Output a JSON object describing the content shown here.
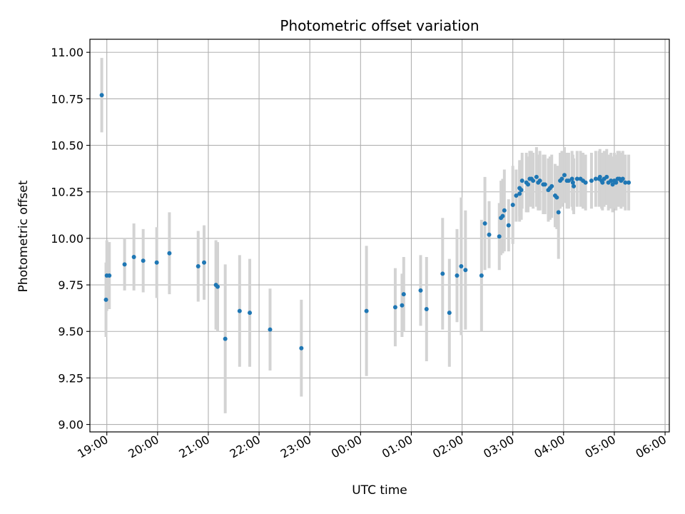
{
  "chart_data": {
    "type": "scatter",
    "title": "Photometric offset variation",
    "xlabel": "UTC time",
    "ylabel": "Photometric offset",
    "grid": true,
    "x_axis_kind": "time",
    "xlim": [
      "18:40",
      "06:05"
    ],
    "ylim": [
      8.96,
      11.07
    ],
    "x_ticks": [
      "19:00",
      "20:00",
      "21:00",
      "22:00",
      "23:00",
      "00:00",
      "01:00",
      "02:00",
      "03:00",
      "04:00",
      "05:00",
      "06:00"
    ],
    "y_ticks": [
      "9.00",
      "9.25",
      "9.50",
      "9.75",
      "10.00",
      "10.25",
      "10.50",
      "10.75",
      "11.00"
    ],
    "colors": {
      "points": "#1f77b4",
      "errorbars": "#d3d3d3",
      "grid": "#b0b0b0"
    },
    "series": [
      {
        "x": [
          "18:54",
          "18:59",
          "19:00",
          "19:03",
          "19:21",
          "19:32",
          "19:43",
          "19:59",
          "20:14",
          "20:48",
          "20:55",
          "21:09",
          "21:11",
          "21:20",
          "21:37",
          "21:49",
          "22:13",
          "22:50",
          "00:07",
          "00:41",
          "00:49",
          "00:51",
          "01:11",
          "01:18",
          "01:37",
          "01:45",
          "01:54",
          "01:59",
          "02:04",
          "02:23",
          "02:27",
          "02:32",
          "02:44",
          "02:46",
          "02:48",
          "02:50",
          "02:55",
          "03:00",
          "03:04",
          "03:08",
          "03:08",
          "03:10",
          "03:11",
          "03:16",
          "03:18",
          "03:20",
          "03:22",
          "03:24",
          "03:28",
          "03:30",
          "03:32",
          "03:36",
          "03:38",
          "03:42",
          "03:44",
          "03:46",
          "03:50",
          "03:52",
          "03:54",
          "03:56",
          "03:58",
          "04:01",
          "04:04",
          "04:06",
          "04:10",
          "04:11",
          "04:12",
          "04:16",
          "04:20",
          "04:23",
          "04:26",
          "04:33",
          "04:38",
          "04:42",
          "04:43",
          "04:45",
          "04:46",
          "04:48",
          "04:51",
          "04:53",
          "04:56",
          "04:58",
          "05:00",
          "05:02",
          "05:04",
          "05:06",
          "05:08",
          "05:10",
          "05:13",
          "05:17"
        ],
        "y": [
          10.77,
          9.67,
          9.8,
          9.8,
          9.86,
          9.9,
          9.88,
          9.87,
          9.92,
          9.85,
          9.87,
          9.75,
          9.74,
          9.46,
          9.61,
          9.6,
          9.51,
          9.41,
          9.61,
          9.63,
          9.64,
          9.7,
          9.72,
          9.62,
          9.81,
          9.6,
          9.8,
          9.85,
          9.83,
          9.8,
          10.08,
          10.02,
          10.01,
          10.11,
          10.12,
          10.15,
          10.07,
          10.18,
          10.23,
          10.24,
          10.27,
          10.26,
          10.31,
          10.3,
          10.29,
          10.32,
          10.32,
          10.31,
          10.33,
          10.3,
          10.31,
          10.29,
          10.29,
          10.26,
          10.27,
          10.28,
          10.23,
          10.22,
          10.14,
          10.31,
          10.32,
          10.34,
          10.31,
          10.31,
          10.32,
          10.3,
          10.28,
          10.32,
          10.32,
          10.31,
          10.3,
          10.31,
          10.32,
          10.32,
          10.33,
          10.31,
          10.3,
          10.32,
          10.33,
          10.3,
          10.31,
          10.29,
          10.31,
          10.3,
          10.32,
          10.32,
          10.31,
          10.32,
          10.3,
          10.3
        ],
        "error": [
          0.2,
          0.2,
          0.19,
          0.18,
          0.14,
          0.18,
          0.17,
          0.19,
          0.22,
          0.19,
          0.2,
          0.24,
          0.24,
          0.4,
          0.3,
          0.29,
          0.22,
          0.26,
          0.35,
          0.21,
          0.17,
          0.2,
          0.19,
          0.28,
          0.3,
          0.29,
          0.25,
          0.37,
          0.32,
          0.3,
          0.25,
          0.18,
          0.18,
          0.2,
          0.2,
          0.22,
          0.14,
          0.21,
          0.14,
          0.15,
          0.15,
          0.16,
          0.15,
          0.16,
          0.15,
          0.15,
          0.15,
          0.15,
          0.16,
          0.15,
          0.16,
          0.16,
          0.16,
          0.17,
          0.17,
          0.17,
          0.17,
          0.17,
          0.25,
          0.15,
          0.15,
          0.15,
          0.15,
          0.15,
          0.15,
          0.15,
          0.15,
          0.15,
          0.15,
          0.15,
          0.15,
          0.15,
          0.15,
          0.15,
          0.15,
          0.15,
          0.15,
          0.15,
          0.15,
          0.15,
          0.15,
          0.15,
          0.15,
          0.15,
          0.15,
          0.15,
          0.15,
          0.15,
          0.15,
          0.15
        ]
      }
    ]
  }
}
